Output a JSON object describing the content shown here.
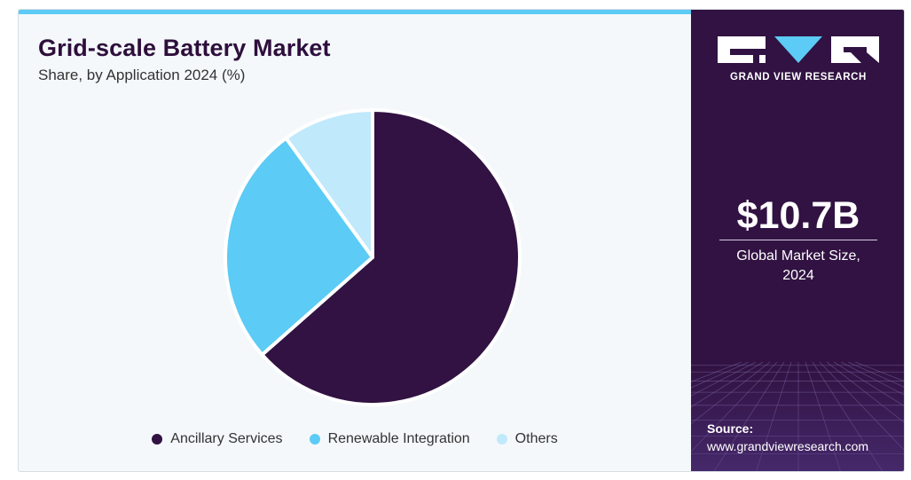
{
  "header": {
    "title": "Grid-scale Battery Market",
    "subtitle": "Share, by Application 2024 (%)"
  },
  "chart_data": {
    "type": "pie",
    "categories": [
      "Ancillary Services",
      "Renewable Integration",
      "Others"
    ],
    "values": [
      63.5,
      26.5,
      10.0
    ],
    "colors": [
      "#311242",
      "#5ccbf5",
      "#c0e9fb"
    ],
    "legend_position": "bottom"
  },
  "sidebar": {
    "logo_text": "GRAND VIEW RESEARCH",
    "market_value": "$10.7B",
    "market_label_line1": "Global Market Size,",
    "market_label_line2": "2024",
    "source_label": "Source:",
    "source_url": "www.grandviewresearch.com"
  }
}
